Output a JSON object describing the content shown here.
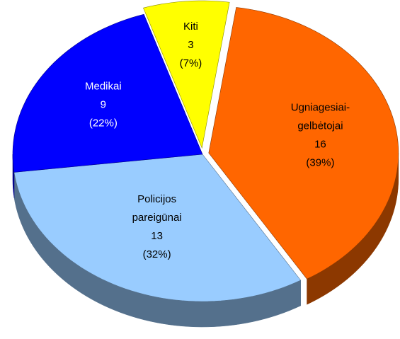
{
  "chart_data": {
    "type": "pie3d",
    "categories": [
      "Kiti",
      "Ugniagesiai-gelbėtojai",
      "Policijos pareigūnai",
      "Medikai"
    ],
    "values": [
      3,
      16,
      13,
      9
    ],
    "percentages": [
      7,
      39,
      32,
      22
    ],
    "percentage_labels": [
      "(7%)",
      "(39%)",
      "(32%)",
      "(22%)"
    ],
    "colors": [
      "#ffff00",
      "#ff6600",
      "#99ccff",
      "#0000ff"
    ],
    "label_colors": [
      "#000000",
      "#000000",
      "#000000",
      "#ffffff"
    ]
  }
}
